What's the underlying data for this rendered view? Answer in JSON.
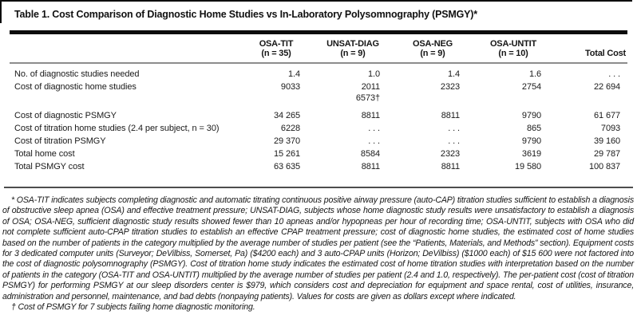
{
  "table": {
    "title": "Table 1. Cost Comparison of Diagnostic Home Studies vs In-Laboratory Polysomnography (PSMGY)*",
    "columns": [
      {
        "label": "",
        "sub": ""
      },
      {
        "label": "OSA-TIT",
        "sub": "(n = 35)"
      },
      {
        "label": "UNSAT-DIAG",
        "sub": "(n = 9)"
      },
      {
        "label": "OSA-NEG",
        "sub": "(n = 9)"
      },
      {
        "label": "OSA-UNTIT",
        "sub": "(n = 10)"
      },
      {
        "label": "Total Cost",
        "sub": ""
      }
    ],
    "rows": [
      {
        "label": "No. of diagnostic studies needed",
        "values": [
          "1.4",
          "1.0",
          "1.4",
          "1.6",
          ". . ."
        ]
      },
      {
        "label": "Cost of diagnostic home studies",
        "values": [
          "9033",
          "2011\n6573†",
          "2323",
          "2754",
          "22 694"
        ]
      },
      {
        "label": "Cost of diagnostic PSMGY",
        "values": [
          "34 265",
          "8811",
          "8811",
          "9790",
          "61 677"
        ]
      },
      {
        "label": "Cost of titration home studies (2.4 per subject, n = 30)",
        "values": [
          "6228",
          ". . .",
          ". . .",
          "865",
          "7093"
        ]
      },
      {
        "label": "Cost of titration PSMGY",
        "values": [
          "29 370",
          ". . .",
          ". . .",
          "9790",
          "39 160"
        ]
      },
      {
        "label": "Total home cost",
        "values": [
          "15 261",
          "8584",
          "2323",
          "3619",
          "29 787"
        ]
      },
      {
        "label": "Total PSMGY cost",
        "values": [
          "63 635",
          "8811",
          "8811",
          "19 580",
          "100 837"
        ]
      }
    ]
  },
  "footnotes": {
    "asterisk": "* OSA-TIT indicates subjects completing diagnostic and automatic titrating continuous positive airway pressure (auto-CAP) titration studies sufficient to establish a diagnosis of obstructive sleep apnea (OSA) and effective treatment pressure; UNSAT-DIAG, subjects whose home diagnostic study results were unsatisfactory to establish a diagnosis of OSA; OSA-NEG, sufficient diagnostic study results showed fewer than 10 apneas and/or hypopneas per hour of recording time; OSA-UNTIT, subjects with OSA who did not complete sufficient auto-CPAP titration studies to establish an effective CPAP treatment pressure; cost of diagnostic home studies, the estimated cost of home studies based on the number of patients in the category multiplied by the average number of studies per patient (see the “Patients, Materials, and Methods” section). Equipment costs for 3 dedicated computer units (Surveyor; DeVilbiss, Somerset, Pa) ($4200 each) and 3 auto-CPAP units (Horizon; DeVilbiss) ($1000 each) of $15 600 were not factored into the cost of diagnostic polysomnography (PSMGY). Cost of titration home study indicates the estimated cost of home titration studies with interpretation based on the number of patients in the category (OSA-TIT and OSA-UNTIT) multiplied by the average number of studies per patient (2.4 and 1.0, respectively). The per-patient cost (cost of titration PSMGY) for performing PSMGY at our sleep disorders center is $979, which considers cost and depreciation for equipment and space rental, cost of utilities, insurance, administration and personnel, maintenance, and bad debts (nonpaying patients). Values for costs are given as dollars except where indicated.",
    "dagger": "† Cost of PSMGY for 7 subjects failing home diagnostic monitoring."
  }
}
